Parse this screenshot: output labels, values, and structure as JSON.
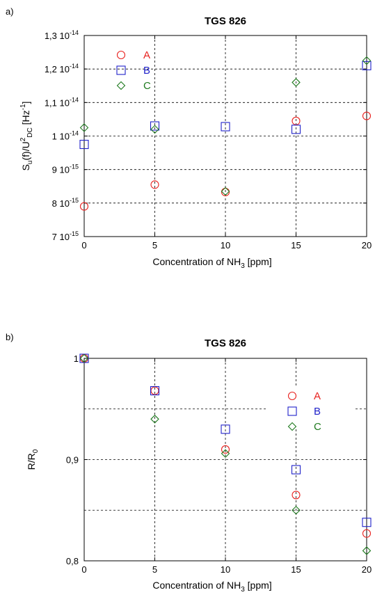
{
  "chart_data": [
    {
      "panel": "a)",
      "type": "scatter",
      "title": "TGS 826",
      "xlabel": "Concentration of NH",
      "xlabel_sub": "3",
      "xlabel_unit": "[ppm]",
      "ylabel": "S",
      "ylabel_sub1": "u",
      "ylabel_mid": "(f)/U",
      "ylabel_sup": "2",
      "ylabel_sub2": "DC",
      "ylabel_unit": "[Hz",
      "ylabel_unit_sup": "-1",
      "ylabel_unit_close": "]",
      "xlim": [
        0,
        20
      ],
      "ylim": [
        7e-15,
        1.3e-14
      ],
      "xticks": [
        "0",
        "5",
        "10",
        "15",
        "20"
      ],
      "yticks": [
        {
          "value": 7e-15,
          "mant": "7 10",
          "exp": "-15"
        },
        {
          "value": 8e-15,
          "mant": "8 10",
          "exp": "-15"
        },
        {
          "value": 9e-15,
          "mant": "9 10",
          "exp": "-15"
        },
        {
          "value": 1e-14,
          "mant": "1 10",
          "exp": "-14"
        },
        {
          "value": 1.1e-14,
          "mant": "1,1 10",
          "exp": "-14"
        },
        {
          "value": 1.2e-14,
          "mant": "1,2 10",
          "exp": "-14"
        },
        {
          "value": 1.3e-14,
          "mant": "1,3 10",
          "exp": "-14"
        }
      ],
      "grid": true,
      "legend_position": "top-left",
      "series": [
        {
          "name": "A",
          "marker": "circle",
          "color": "#e8221f",
          "x": [
            0,
            5,
            10,
            15,
            20
          ],
          "y": [
            7.9e-15,
            8.55e-15,
            8.33e-15,
            1.045e-14,
            1.06e-14
          ]
        },
        {
          "name": "B",
          "marker": "square",
          "color": "#1f21c9",
          "x": [
            0,
            5,
            10,
            15,
            20
          ],
          "y": [
            9.75e-15,
            1.03e-14,
            1.028e-14,
            1.02e-14,
            1.21e-14
          ]
        },
        {
          "name": "C",
          "marker": "diamond",
          "color": "#1f7a1f",
          "x": [
            0,
            5,
            10,
            15,
            20
          ],
          "y": [
            1.025e-14,
            1.02e-14,
            8.35e-15,
            1.16e-14,
            1.225e-14
          ]
        }
      ]
    },
    {
      "panel": "b)",
      "type": "scatter",
      "title": "TGS 826",
      "xlabel": "Concentration of NH",
      "xlabel_sub": "3",
      "xlabel_unit": "[ppm]",
      "ylabel": "R/R",
      "ylabel_sub1": "0",
      "xlim": [
        0,
        20
      ],
      "ylim": [
        0.8,
        1.0
      ],
      "xticks": [
        "0",
        "5",
        "10",
        "15",
        "20"
      ],
      "yticks": [
        {
          "value": 0.8,
          "mant": "0,8"
        },
        {
          "value": 0.9,
          "mant": "0,9"
        },
        {
          "value": 1.0,
          "mant": "1"
        }
      ],
      "grid": true,
      "legend_position": "top-right",
      "series": [
        {
          "name": "A",
          "marker": "circle",
          "color": "#e8221f",
          "x": [
            0,
            5,
            10,
            15,
            20
          ],
          "y": [
            1.0,
            0.968,
            0.91,
            0.865,
            0.827
          ]
        },
        {
          "name": "B",
          "marker": "square",
          "color": "#1f21c9",
          "x": [
            0,
            5,
            10,
            15,
            20
          ],
          "y": [
            1.0,
            0.968,
            0.93,
            0.89,
            0.838
          ]
        },
        {
          "name": "C",
          "marker": "diamond",
          "color": "#1f7a1f",
          "x": [
            0,
            5,
            10,
            15,
            20
          ],
          "y": [
            1.0,
            0.94,
            0.906,
            0.85,
            0.81
          ]
        }
      ]
    }
  ]
}
